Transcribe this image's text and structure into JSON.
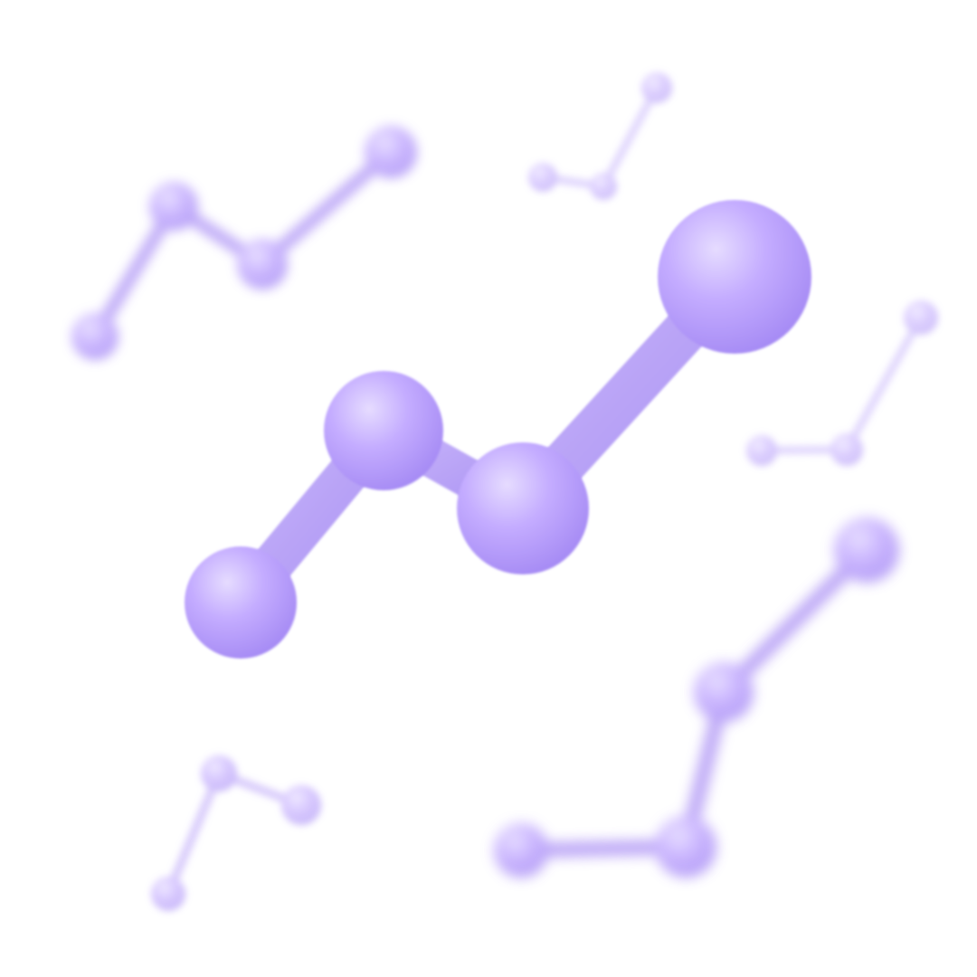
{
  "scene": {
    "subject": "molecule-illustration",
    "background_color": "#ffffff",
    "colors": {
      "atom_highlight": "#e6dcff",
      "atom_mid": "#c4acff",
      "atom_shadow": "#a58af4",
      "bond_light": "#c9b6fb",
      "bond_dark": "#a991f2"
    },
    "molecules": [
      {
        "name": "main-molecule",
        "atom_count": 4,
        "focus": "sharp"
      },
      {
        "name": "top-left-molecule",
        "atom_count": 4,
        "focus": "blurred"
      },
      {
        "name": "top-center-molecule",
        "atom_count": 3,
        "focus": "blurred"
      },
      {
        "name": "right-molecule",
        "atom_count": 3,
        "focus": "blurred"
      },
      {
        "name": "bottom-left-molecule",
        "atom_count": 3,
        "focus": "blurred"
      },
      {
        "name": "bottom-right-molecule",
        "atom_count": 4,
        "focus": "blurred"
      }
    ]
  }
}
